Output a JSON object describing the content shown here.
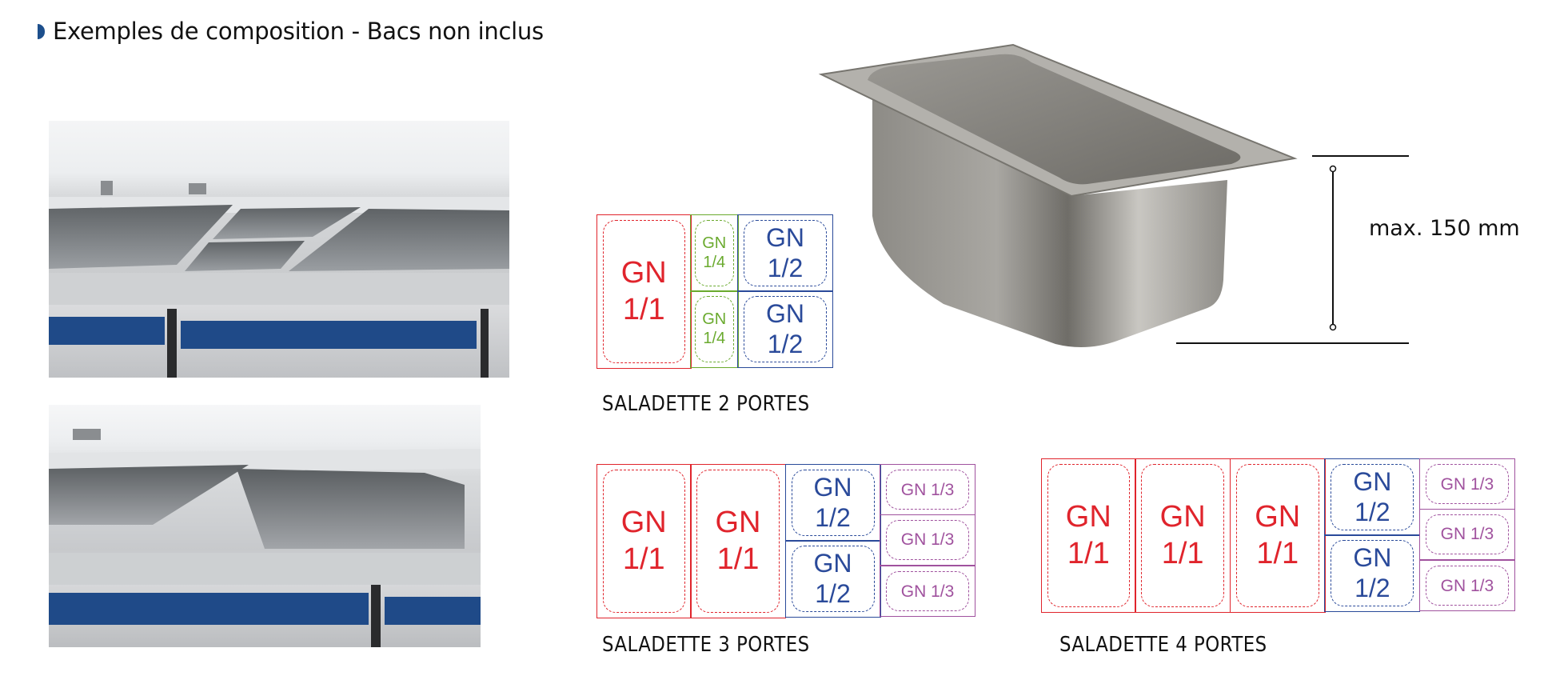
{
  "heading": {
    "text": "Exemples de composition - Bacs non inclus",
    "bullet_color": "#1d4f8c"
  },
  "pan": {
    "dimension_label": "max. 150 mm"
  },
  "colors": {
    "gn_1_1": "#e0242c",
    "gn_1_4": "#6aaa2e",
    "gn_1_2": "#2a4a9a",
    "gn_1_3": "#a0529e"
  },
  "diagrams": [
    {
      "caption": "SALADETTE 2 PORTES",
      "columns": [
        {
          "type": "gn_1_1",
          "cells": [
            [
              "GN",
              "1/1"
            ]
          ]
        },
        {
          "type": "gn_1_4",
          "cells": [
            [
              "GN",
              "1/4"
            ],
            [
              "GN",
              "1/4"
            ]
          ]
        },
        {
          "type": "gn_1_2",
          "cells": [
            [
              "GN",
              "1/2"
            ],
            [
              "GN",
              "1/2"
            ]
          ]
        }
      ]
    },
    {
      "caption": "SALADETTE 3 PORTES",
      "columns": [
        {
          "type": "gn_1_1",
          "cells": [
            [
              "GN",
              "1/1"
            ]
          ]
        },
        {
          "type": "gn_1_1",
          "cells": [
            [
              "GN",
              "1/1"
            ]
          ]
        },
        {
          "type": "gn_1_2",
          "cells": [
            [
              "GN",
              "1/2"
            ],
            [
              "GN",
              "1/2"
            ]
          ]
        },
        {
          "type": "gn_1_3",
          "cells": [
            [
              "GN 1/3"
            ],
            [
              "GN 1/3"
            ],
            [
              "GN 1/3"
            ]
          ]
        }
      ]
    },
    {
      "caption": "SALADETTE 4 PORTES",
      "columns": [
        {
          "type": "gn_1_1",
          "cells": [
            [
              "GN",
              "1/1"
            ]
          ]
        },
        {
          "type": "gn_1_1",
          "cells": [
            [
              "GN",
              "1/1"
            ]
          ]
        },
        {
          "type": "gn_1_1",
          "cells": [
            [
              "GN",
              "1/1"
            ]
          ]
        },
        {
          "type": "gn_1_2",
          "cells": [
            [
              "GN",
              "1/2"
            ],
            [
              "GN",
              "1/2"
            ]
          ]
        },
        {
          "type": "gn_1_3",
          "cells": [
            [
              "GN 1/3"
            ],
            [
              "GN 1/3"
            ],
            [
              "GN 1/3"
            ]
          ]
        }
      ]
    }
  ]
}
